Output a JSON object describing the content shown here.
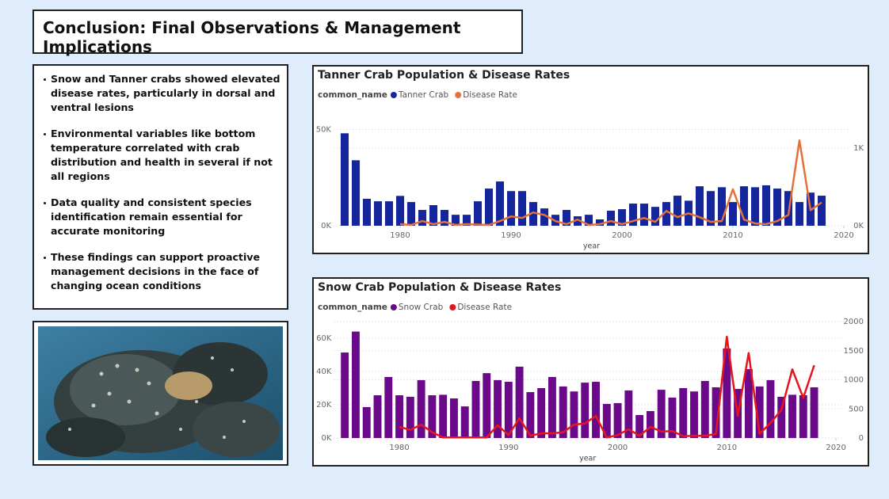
{
  "header": {
    "title": "Conclusion: Final Observations & Management Implications"
  },
  "bullets": [
    "Snow and Tanner crabs showed elevated disease rates, particularly in dorsal and ventral lesions",
    "Environmental variables like bottom temperature correlated with crab distribution and health in several if not all regions",
    "Data quality and consistent species identification remain essential for accurate monitoring",
    "These findings can support proactive management decisions in the face of changing ocean conditions"
  ],
  "chart_data": [
    {
      "type": "combo",
      "title": "Tanner Crab Population & Disease Rates",
      "legend_title": "common_name",
      "x_label": "year",
      "grid": true,
      "x": [
        1975,
        1976,
        1977,
        1978,
        1979,
        1980,
        1981,
        1982,
        1983,
        1984,
        1985,
        1986,
        1987,
        1988,
        1989,
        1990,
        1991,
        1992,
        1993,
        1994,
        1995,
        1996,
        1997,
        1998,
        1999,
        2000,
        2001,
        2002,
        2003,
        2004,
        2005,
        2006,
        2007,
        2008,
        2009,
        2010,
        2011,
        2012,
        2013,
        2014,
        2015,
        2016,
        2017,
        2018
      ],
      "xlim": [
        1974,
        2020.5
      ],
      "xticks": [
        1980,
        1990,
        2000,
        2010,
        2020
      ],
      "ylim": [
        0,
        51000
      ],
      "yticks": [
        {
          "value": 0,
          "label": "0K"
        },
        {
          "value": 50000,
          "label": "50K"
        }
      ],
      "y2lim": [
        0,
        1265
      ],
      "y2ticks": [
        {
          "value": 0,
          "label": "0K"
        },
        {
          "value": 1000,
          "label": "1K"
        }
      ],
      "series": [
        {
          "name": "Tanner Crab",
          "type": "bar",
          "color": "#15259c",
          "values": [
            48000,
            34000,
            14000,
            12700,
            12700,
            15500,
            12300,
            8200,
            10700,
            8200,
            5700,
            5700,
            12700,
            19300,
            23000,
            18000,
            18000,
            12300,
            9000,
            5700,
            8200,
            4900,
            5700,
            3300,
            7800,
            8600,
            11500,
            11500,
            9800,
            12300,
            15600,
            13000,
            20500,
            18000,
            20000,
            12300,
            20500,
            20000,
            21000,
            19300,
            18000,
            12300,
            17200,
            15600
          ]
        },
        {
          "name": "Disease Rate",
          "type": "line",
          "axis": "y2",
          "color": "#e4703a",
          "values": [
            null,
            null,
            null,
            null,
            null,
            20,
            10,
            60,
            20,
            50,
            10,
            20,
            15,
            10,
            60,
            120,
            100,
            170,
            140,
            60,
            20,
            80,
            10,
            20,
            60,
            20,
            60,
            100,
            50,
            190,
            110,
            160,
            110,
            50,
            60,
            470,
            80,
            30,
            20,
            60,
            140,
            1100,
            200,
            300
          ]
        }
      ]
    },
    {
      "type": "combo",
      "title": "Snow Crab Population & Disease Rates",
      "legend_title": "common_name",
      "x_label": "year",
      "grid": true,
      "x": [
        1975,
        1976,
        1977,
        1978,
        1979,
        1980,
        1981,
        1982,
        1983,
        1984,
        1985,
        1986,
        1987,
        1988,
        1989,
        1990,
        1991,
        1992,
        1993,
        1994,
        1995,
        1996,
        1997,
        1998,
        1999,
        2000,
        2001,
        2002,
        2003,
        2004,
        2005,
        2006,
        2007,
        2008,
        2009,
        2010,
        2011,
        2012,
        2013,
        2014,
        2015,
        2016,
        2017,
        2018
      ],
      "xlim": [
        1974,
        2020.5
      ],
      "xticks": [
        1980,
        1990,
        2000,
        2010,
        2020
      ],
      "ylim": [
        0,
        70000
      ],
      "yticks": [
        {
          "value": 0,
          "label": "0K"
        },
        {
          "value": 20000,
          "label": "20K"
        },
        {
          "value": 40000,
          "label": "40K"
        },
        {
          "value": 60000,
          "label": "60K"
        }
      ],
      "y2lim": [
        0,
        2000
      ],
      "y2ticks": [
        0,
        500,
        1000,
        1500,
        2000
      ],
      "series": [
        {
          "name": "Snow Crab",
          "type": "bar",
          "color": "#6a0a8a",
          "values": [
            51400,
            64000,
            18600,
            25700,
            36700,
            25700,
            24800,
            34800,
            25700,
            26000,
            23800,
            19000,
            34300,
            39000,
            34800,
            33800,
            42900,
            27600,
            30000,
            36700,
            31000,
            28000,
            33300,
            33800,
            20500,
            21000,
            28600,
            13800,
            16200,
            29000,
            24300,
            30000,
            28000,
            34300,
            30500,
            53800,
            29500,
            41400,
            31000,
            34800,
            24800,
            26000,
            25700,
            30500
          ]
        },
        {
          "name": "Disease Rate",
          "type": "line",
          "axis": "y2",
          "color": "#e8141c",
          "values": [
            null,
            null,
            null,
            null,
            null,
            190,
            140,
            230,
            100,
            10,
            10,
            10,
            10,
            10,
            220,
            50,
            340,
            40,
            80,
            80,
            100,
            230,
            250,
            380,
            10,
            50,
            150,
            40,
            190,
            110,
            120,
            30,
            40,
            40,
            70,
            1740,
            380,
            1460,
            70,
            260,
            480,
            1180,
            690,
            1250
          ]
        }
      ]
    }
  ]
}
